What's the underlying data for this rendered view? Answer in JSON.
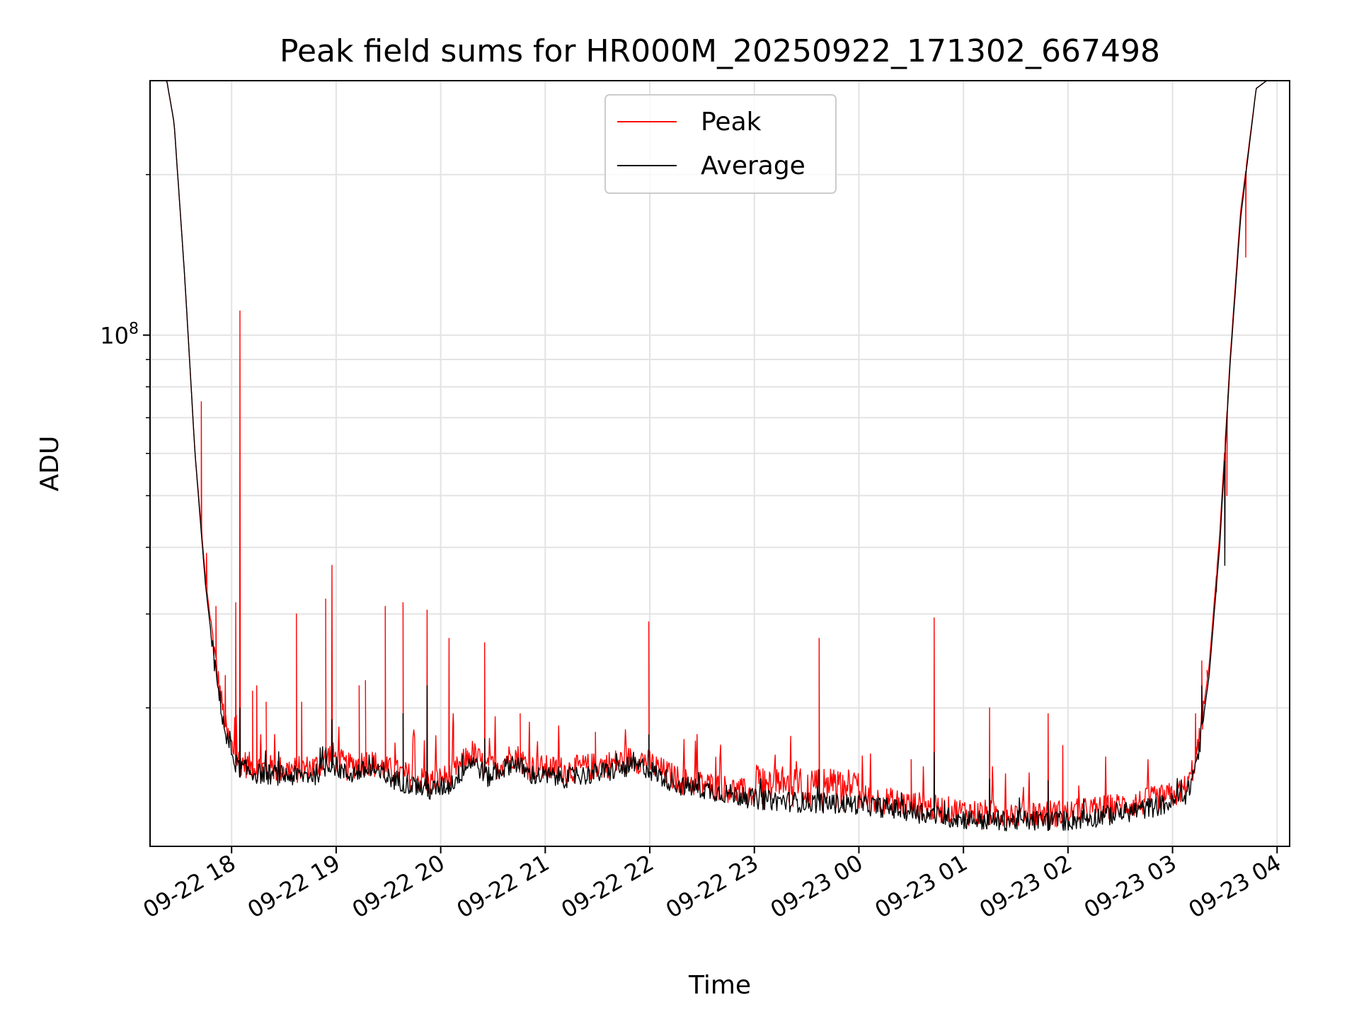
{
  "chart_data": {
    "type": "line",
    "title": "Peak field sums for HR000M_20250922_171302_667498",
    "xlabel": "Time",
    "ylabel": "ADU",
    "yscale": "log",
    "ylim": [
      11000000,
      300000000
    ],
    "xlim_hours": [
      -0.78,
      10.12
    ],
    "grid": true,
    "legend_position": "upper-center",
    "x_ticks": [
      {
        "hour": 0,
        "label": "09-22 18"
      },
      {
        "hour": 1,
        "label": "09-22 19"
      },
      {
        "hour": 2,
        "label": "09-22 20"
      },
      {
        "hour": 3,
        "label": "09-22 21"
      },
      {
        "hour": 4,
        "label": "09-22 22"
      },
      {
        "hour": 5,
        "label": "09-22 23"
      },
      {
        "hour": 6,
        "label": "09-23 00"
      },
      {
        "hour": 7,
        "label": "09-23 01"
      },
      {
        "hour": 8,
        "label": "09-23 02"
      },
      {
        "hour": 9,
        "label": "09-23 03"
      },
      {
        "hour": 10,
        "label": "09-23 04"
      }
    ],
    "y_major_ticks": [
      {
        "value": 100000000,
        "base": "10",
        "exponent": "8"
      }
    ],
    "y_minor_ticks": [
      20000000,
      30000000,
      40000000,
      50000000,
      60000000,
      70000000,
      80000000,
      90000000,
      200000000
    ],
    "series": [
      {
        "name": "Peak",
        "color": "#ff0000",
        "baseline": [
          [
            -0.78,
            300000000
          ],
          [
            -0.62,
            300000000
          ],
          [
            -0.55,
            250000000
          ],
          [
            -0.45,
            130000000
          ],
          [
            -0.35,
            60000000
          ],
          [
            -0.25,
            35000000
          ],
          [
            -0.15,
            24000000
          ],
          [
            -0.05,
            18000000
          ],
          [
            0.05,
            16000000
          ],
          [
            0.2,
            15500000
          ],
          [
            0.4,
            15400000
          ],
          [
            0.6,
            15300000
          ],
          [
            0.8,
            15500000
          ],
          [
            0.95,
            16400000
          ],
          [
            1.1,
            15500000
          ],
          [
            1.3,
            15900000
          ],
          [
            1.5,
            15300000
          ],
          [
            1.7,
            14900000
          ],
          [
            1.9,
            14500000
          ],
          [
            2.1,
            14900000
          ],
          [
            2.3,
            16500000
          ],
          [
            2.45,
            15300000
          ],
          [
            2.6,
            15900000
          ],
          [
            2.7,
            16400000
          ],
          [
            2.85,
            15500000
          ],
          [
            3.0,
            15400000
          ],
          [
            3.2,
            15300000
          ],
          [
            3.4,
            15500000
          ],
          [
            3.6,
            15700000
          ],
          [
            3.8,
            16000000
          ],
          [
            3.95,
            16000000
          ],
          [
            4.1,
            15300000
          ],
          [
            4.3,
            14600000
          ],
          [
            4.6,
            14300000
          ],
          [
            5.0,
            13800000
          ],
          [
            5.5,
            13600000
          ],
          [
            6.0,
            13600000
          ],
          [
            6.4,
            13300000
          ],
          [
            6.8,
            12900000
          ],
          [
            7.2,
            12700000
          ],
          [
            7.6,
            12700000
          ],
          [
            8.0,
            12700000
          ],
          [
            8.4,
            13000000
          ],
          [
            8.7,
            13300000
          ],
          [
            9.0,
            13700000
          ],
          [
            9.15,
            14300000
          ],
          [
            9.25,
            17000000
          ],
          [
            9.35,
            24000000
          ],
          [
            9.45,
            42000000
          ],
          [
            9.55,
            90000000
          ],
          [
            9.65,
            170000000
          ],
          [
            9.8,
            290000000
          ],
          [
            9.9,
            300000000
          ],
          [
            10.12,
            300000000
          ]
        ],
        "spikes": [
          [
            -0.29,
            75000000
          ],
          [
            -0.24,
            39000000
          ],
          [
            -0.15,
            31000000
          ],
          [
            -0.06,
            23000000
          ],
          [
            0.04,
            31500000
          ],
          [
            0.08,
            111000000
          ],
          [
            0.2,
            21500000
          ],
          [
            0.24,
            22000000
          ],
          [
            0.33,
            20500000
          ],
          [
            0.62,
            30000000
          ],
          [
            0.67,
            20500000
          ],
          [
            0.9,
            32000000
          ],
          [
            0.96,
            37000000
          ],
          [
            1.22,
            22000000
          ],
          [
            1.28,
            22500000
          ],
          [
            1.47,
            31000000
          ],
          [
            1.64,
            31500000
          ],
          [
            1.87,
            30500000
          ],
          [
            2.08,
            27000000
          ],
          [
            2.12,
            19500000
          ],
          [
            2.42,
            26500000
          ],
          [
            2.76,
            19500000
          ],
          [
            3.48,
            18000000
          ],
          [
            3.99,
            29000000
          ],
          [
            5.62,
            27000000
          ],
          [
            6.5,
            16000000
          ],
          [
            6.72,
            29500000
          ],
          [
            7.25,
            20000000
          ],
          [
            7.81,
            19500000
          ],
          [
            7.95,
            17000000
          ],
          [
            9.22,
            19500000
          ],
          [
            9.28,
            24500000
          ],
          [
            9.33,
            23500000
          ],
          [
            9.42,
            33000000
          ],
          [
            9.5,
            40000000
          ],
          [
            9.52,
            50000000
          ],
          [
            9.7,
            140000000
          ]
        ]
      },
      {
        "name": "Average",
        "color": "#000000",
        "baseline": [
          [
            -0.78,
            300000000
          ],
          [
            -0.62,
            300000000
          ],
          [
            -0.55,
            250000000
          ],
          [
            -0.45,
            130000000
          ],
          [
            -0.35,
            60000000
          ],
          [
            -0.25,
            34000000
          ],
          [
            -0.15,
            23000000
          ],
          [
            -0.05,
            17500000
          ],
          [
            0.05,
            15600000
          ],
          [
            0.2,
            15100000
          ],
          [
            0.4,
            15000000
          ],
          [
            0.6,
            14900000
          ],
          [
            0.8,
            15000000
          ],
          [
            0.95,
            15800000
          ],
          [
            1.1,
            15000000
          ],
          [
            1.3,
            15300000
          ],
          [
            1.5,
            14800000
          ],
          [
            1.7,
            14400000
          ],
          [
            1.9,
            14000000
          ],
          [
            2.1,
            14400000
          ],
          [
            2.3,
            16000000
          ],
          [
            2.45,
            14800000
          ],
          [
            2.6,
            15400000
          ],
          [
            2.7,
            15900000
          ],
          [
            2.85,
            15000000
          ],
          [
            3.0,
            14900000
          ],
          [
            3.2,
            14800000
          ],
          [
            3.4,
            15000000
          ],
          [
            3.6,
            15200000
          ],
          [
            3.8,
            15500000
          ],
          [
            3.95,
            15500000
          ],
          [
            4.1,
            14900000
          ],
          [
            4.3,
            14300000
          ],
          [
            4.6,
            14000000
          ],
          [
            5.0,
            13500000
          ],
          [
            5.5,
            13300000
          ],
          [
            6.0,
            13200000
          ],
          [
            6.4,
            12900000
          ],
          [
            6.8,
            12500000
          ],
          [
            7.2,
            12300000
          ],
          [
            7.6,
            12300000
          ],
          [
            8.0,
            12300000
          ],
          [
            8.4,
            12600000
          ],
          [
            8.7,
            12900000
          ],
          [
            9.0,
            13300000
          ],
          [
            9.15,
            13900000
          ],
          [
            9.25,
            16500000
          ],
          [
            9.35,
            23000000
          ],
          [
            9.45,
            40000000
          ],
          [
            9.55,
            88000000
          ],
          [
            9.65,
            165000000
          ],
          [
            9.8,
            290000000
          ],
          [
            9.9,
            300000000
          ],
          [
            10.12,
            300000000
          ]
        ],
        "spikes": [
          [
            0.08,
            20000000
          ],
          [
            0.96,
            19000000
          ],
          [
            1.64,
            19500000
          ],
          [
            1.87,
            22000000
          ],
          [
            2.42,
            17500000
          ],
          [
            3.99,
            17800000
          ],
          [
            5.62,
            15300000
          ],
          [
            6.72,
            16500000
          ],
          [
            7.25,
            14700000
          ],
          [
            7.81,
            14600000
          ],
          [
            9.28,
            22000000
          ],
          [
            9.5,
            37000000
          ]
        ]
      }
    ]
  }
}
